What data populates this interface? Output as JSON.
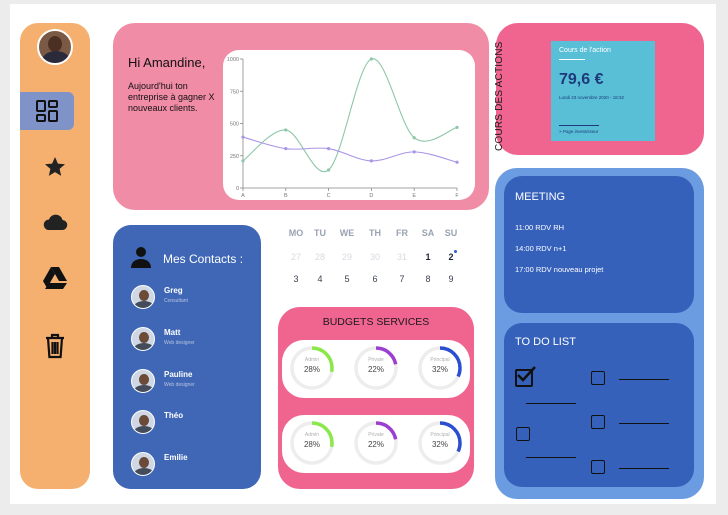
{
  "sidebar": {
    "items": [
      {
        "name": "dashboard",
        "active": true
      },
      {
        "name": "favorites",
        "active": false
      },
      {
        "name": "cloud",
        "active": false
      },
      {
        "name": "drive",
        "active": false
      },
      {
        "name": "trash",
        "active": false
      }
    ]
  },
  "hero": {
    "greeting": "Hi Amandine,",
    "message": "Aujourd'hui ton entreprise à gagner X nouveaux clients."
  },
  "chart_data": {
    "type": "line",
    "x": [
      "A",
      "B",
      "C",
      "D",
      "E",
      "F"
    ],
    "ylim": [
      0,
      1000
    ],
    "yticks": [
      "0",
      "250",
      "500",
      "750",
      "1000"
    ],
    "series": [
      {
        "color": "#8ec7a8",
        "values": [
          210,
          450,
          140,
          1000,
          390,
          470
        ]
      },
      {
        "color": "#a995e6",
        "values": [
          395,
          305,
          305,
          210,
          280,
          200
        ]
      }
    ]
  },
  "stock": {
    "side_label": "COURS DES ACTIONS",
    "card_title": "Cours de l'action",
    "value": "79,6 €",
    "date": "Lundi 23 novembre 2020 - 18:32",
    "link": "> Page investisseur"
  },
  "contacts": {
    "title": "Mes Contacts :",
    "items": [
      {
        "name": "Greg",
        "role": "Consultant"
      },
      {
        "name": "Matt",
        "role": "Web designer"
      },
      {
        "name": "Pauline",
        "role": "Web designer"
      },
      {
        "name": "Théo",
        "role": ""
      },
      {
        "name": "Emilie",
        "role": ""
      }
    ]
  },
  "calendar": {
    "days": [
      "MO",
      "TU",
      "WE",
      "TH",
      "FR",
      "SA",
      "SU"
    ],
    "week1": [
      "27",
      "28",
      "29",
      "30",
      "31",
      "1",
      "2"
    ],
    "week2": [
      "3",
      "4",
      "5",
      "6",
      "7",
      "8",
      "9"
    ]
  },
  "budgets": {
    "title": "BUDGETS SERVICES",
    "rows": [
      [
        {
          "label": "Admin",
          "percent": "28%",
          "value": 28,
          "color": "#8be84a"
        },
        {
          "label": "Private",
          "percent": "22%",
          "value": 22,
          "color": "#9b3fd1"
        },
        {
          "label": "Principal",
          "percent": "32%",
          "value": 32,
          "color": "#2c4fd1"
        }
      ],
      [
        {
          "label": "Admin",
          "percent": "28%",
          "value": 28,
          "color": "#8be84a"
        },
        {
          "label": "Private",
          "percent": "22%",
          "value": 22,
          "color": "#9b3fd1"
        },
        {
          "label": "Principal",
          "percent": "32%",
          "value": 32,
          "color": "#2c4fd1"
        }
      ]
    ]
  },
  "meeting": {
    "title": "MEETING",
    "items": [
      "11:00 RDV RH",
      "14:00 RDV n+1",
      "17:00 RDV nouveau projet"
    ]
  },
  "todo": {
    "title": "TO DO LIST"
  }
}
